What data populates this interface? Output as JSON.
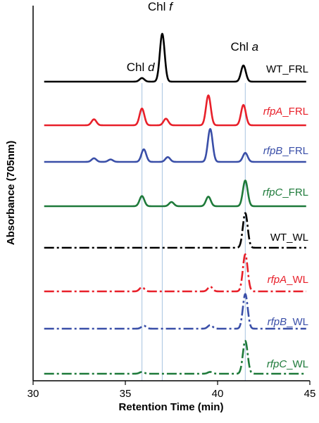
{
  "chart_data": {
    "type": "line",
    "xlabel": "Retention Time (min)",
    "ylabel": "Absorbance (705nm)",
    "xlim": [
      30,
      45
    ],
    "x_ticks": [
      30,
      35,
      40,
      45
    ],
    "legend": "inline labels at right end of each trace",
    "grid": false,
    "reference_lines": [
      35.9,
      37.0,
      41.5
    ],
    "annotations": [
      {
        "prefix": "Chl ",
        "italic": "d",
        "x": 35.9
      },
      {
        "prefix": "Chl ",
        "italic": "f",
        "x": 37.0
      },
      {
        "prefix": "Chl ",
        "italic": "a",
        "x": 41.5
      }
    ],
    "series": [
      {
        "italic": "",
        "suffix": "WT_FRL",
        "color": "#000000",
        "style": "solid",
        "peaks": [
          [
            35.9,
            0.06
          ],
          [
            37.0,
            0.8
          ],
          [
            41.4,
            0.27
          ]
        ]
      },
      {
        "italic": "rfpA",
        "suffix": "_FRL",
        "color": "#e8202a",
        "style": "solid",
        "peaks": [
          [
            33.3,
            0.1
          ],
          [
            35.9,
            0.28
          ],
          [
            37.2,
            0.11
          ],
          [
            39.5,
            0.5
          ],
          [
            41.4,
            0.34
          ]
        ]
      },
      {
        "italic": "rfpB",
        "suffix": "_FRL",
        "color": "#3a4fa8",
        "style": "solid",
        "peaks": [
          [
            33.3,
            0.06
          ],
          [
            34.2,
            0.04
          ],
          [
            36.0,
            0.21
          ],
          [
            37.3,
            0.08
          ],
          [
            39.6,
            0.55
          ],
          [
            41.5,
            0.15
          ]
        ]
      },
      {
        "italic": "rfpC",
        "suffix": "_FRL",
        "color": "#1e7a3a",
        "style": "solid",
        "peaks": [
          [
            35.9,
            0.17
          ],
          [
            37.5,
            0.07
          ],
          [
            39.5,
            0.16
          ],
          [
            41.5,
            0.43
          ]
        ]
      },
      {
        "italic": "",
        "suffix": "WT_WL",
        "color": "#000000",
        "style": "dashdot",
        "peaks": [
          [
            41.5,
            0.58
          ]
        ]
      },
      {
        "italic": "rfpA",
        "suffix": "_WL",
        "color": "#e8202a",
        "style": "dashdot",
        "peaks": [
          [
            35.9,
            0.07
          ],
          [
            39.6,
            0.08
          ],
          [
            41.5,
            0.62
          ]
        ]
      },
      {
        "italic": "rfpB",
        "suffix": "_WL",
        "color": "#3a4fa8",
        "style": "dashdot",
        "peaks": [
          [
            36.0,
            0.05
          ],
          [
            39.6,
            0.06
          ],
          [
            41.5,
            0.58
          ]
        ]
      },
      {
        "italic": "rfpC",
        "suffix": "_WL",
        "color": "#1e7a3a",
        "style": "dashdot",
        "peaks": [
          [
            35.9,
            0.03
          ],
          [
            39.6,
            0.03
          ],
          [
            41.5,
            0.55
          ]
        ]
      }
    ]
  }
}
